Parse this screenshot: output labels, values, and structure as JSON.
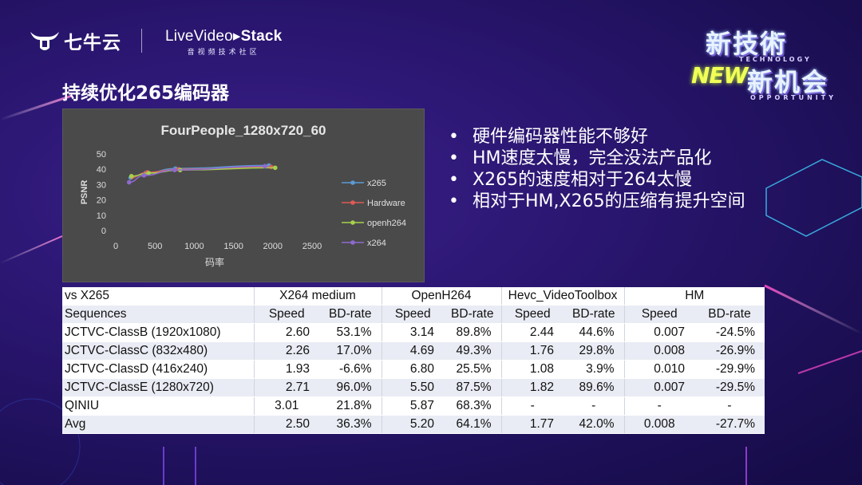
{
  "header": {
    "qiniu_logo_text": "七牛云",
    "lvs_logo_main_part1": "Live",
    "lvs_logo_main_part2": "Video",
    "lvs_logo_main_part3": "Stack",
    "lvs_logo_sub": "音视频技术社区",
    "brand_line1": "新技術",
    "brand_technology": "TECHNOLOGY",
    "brand_new": "NEW",
    "brand_line2": "新机会",
    "brand_opportunity": "OPPORTUNITY"
  },
  "slide": {
    "title": "持续优化265编码器"
  },
  "bullets": [
    "硬件编码器性能不够好",
    "HM速度太慢，完全没法产品化",
    "X265的速度相对于264太慢",
    "相对于HM,X265的压缩有提升空间"
  ],
  "bullet_symbol": "•",
  "colors": {
    "x265": "#5b9bd5",
    "Hardware": "#e05a55",
    "openh264": "#a6d14c",
    "x264": "#8e6ad0",
    "background": "#2a1670"
  },
  "chart_data": {
    "type": "line",
    "title": "FourPeople_1280x720_60",
    "xlabel": "码率",
    "ylabel": "PSNR",
    "xlim": [
      0,
      2500
    ],
    "ylim": [
      0,
      50
    ],
    "xticks": [
      "0",
      "500",
      "1000",
      "1500",
      "2000",
      "2500"
    ],
    "yticks": [
      "0",
      "10",
      "20",
      "30",
      "40",
      "50"
    ],
    "grid": false,
    "legend_position": "right",
    "series": [
      {
        "name": "x265",
        "points": [
          [
            190,
            34.5
          ],
          [
            380,
            37.5
          ],
          [
            760,
            40.5
          ],
          [
            1950,
            42.5
          ]
        ]
      },
      {
        "name": "Hardware",
        "points": [
          [
            210,
            35
          ],
          [
            400,
            38
          ],
          [
            800,
            40
          ],
          [
            1980,
            41.5
          ]
        ]
      },
      {
        "name": "openh264",
        "points": [
          [
            200,
            35.5
          ],
          [
            420,
            37.5
          ],
          [
            820,
            39.5
          ],
          [
            2030,
            41
          ]
        ]
      },
      {
        "name": "x264",
        "points": [
          [
            170,
            31.5
          ],
          [
            360,
            36
          ],
          [
            750,
            39.5
          ],
          [
            1900,
            42
          ]
        ]
      }
    ]
  },
  "table": {
    "group_headers": [
      "vs X265",
      "X264 medium",
      "OpenH264",
      "Hevc_VideoToolbox",
      "HM"
    ],
    "sub_headers": [
      "Sequences",
      "Speed",
      "BD-rate",
      "Speed",
      "BD-rate",
      "Speed",
      "BD-rate",
      "Speed",
      "BD-rate"
    ],
    "rows": [
      [
        "JCTVC-ClassB (1920x1080)",
        "2.60",
        "53.1%",
        "3.14",
        "89.8%",
        "2.44",
        "44.6%",
        "0.007",
        "-24.5%"
      ],
      [
        "JCTVC-ClassC (832x480)",
        "2.26",
        "17.0%",
        "4.69",
        "49.3%",
        "1.76",
        "29.8%",
        "0.008",
        "-26.9%"
      ],
      [
        "JCTVC-ClassD (416x240)",
        "1.93",
        "-6.6%",
        "6.80",
        "25.5%",
        "1.08",
        "3.9%",
        "0.010",
        "-29.9%"
      ],
      [
        "JCTVC-ClassE (1280x720)",
        "2.71",
        "96.0%",
        "5.50",
        "87.5%",
        "1.82",
        "89.6%",
        "0.007",
        "-29.5%"
      ],
      [
        "QINIU",
        "3.01",
        "21.8%",
        "5.87",
        "68.3%",
        "-",
        "-",
        "-",
        "-"
      ],
      [
        "Avg",
        "2.50",
        "36.3%",
        "5.20",
        "64.1%",
        "1.77",
        "42.0%",
        "0.008",
        "-27.7%"
      ]
    ]
  }
}
